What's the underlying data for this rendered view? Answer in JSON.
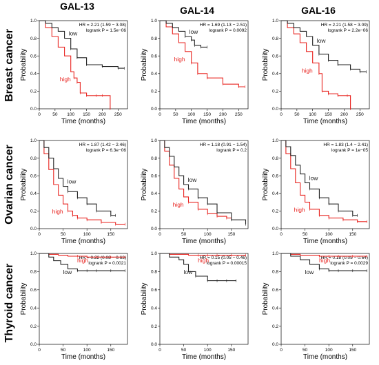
{
  "columns": [
    "GAL-13",
    "GAL-14",
    "GAL-16"
  ],
  "rows": [
    "Breast cancer",
    "Ovarian cancer",
    "Thyroid cancer"
  ],
  "colors": {
    "high": "#e8231f",
    "low": "#222222"
  },
  "chart_data": [
    {
      "type": "line",
      "row": 0,
      "col": 0,
      "xlabel": "Time (months)",
      "ylabel": "Probability",
      "xlim": [
        0,
        280
      ],
      "ylim": [
        0,
        1.0
      ],
      "xticks": [
        0,
        50,
        100,
        150,
        200,
        250
      ],
      "yticks": [
        0.0,
        0.2,
        0.4,
        0.6,
        0.8,
        1.0
      ],
      "hr_text": "HR = 2.21 (1.59 − 3.08)",
      "logrank_text": "logrank P = 1.5e−06",
      "series": [
        {
          "name": "high",
          "x": [
            0,
            20,
            40,
            60,
            80,
            100,
            110,
            120,
            130,
            150,
            180,
            200,
            225
          ],
          "y": [
            1.0,
            0.92,
            0.82,
            0.7,
            0.6,
            0.42,
            0.35,
            0.3,
            0.18,
            0.15,
            0.15,
            0.15,
            0.0
          ]
        },
        {
          "name": "low",
          "x": [
            0,
            20,
            40,
            60,
            80,
            100,
            120,
            150,
            200,
            250,
            270
          ],
          "y": [
            1.0,
            0.97,
            0.92,
            0.88,
            0.8,
            0.68,
            0.58,
            0.5,
            0.48,
            0.46,
            0.46
          ]
        }
      ]
    },
    {
      "type": "line",
      "row": 0,
      "col": 1,
      "xlabel": "Time (months)",
      "ylabel": "Probability",
      "xlim": [
        0,
        280
      ],
      "ylim": [
        0,
        1.0
      ],
      "xticks": [
        0,
        50,
        100,
        150,
        200,
        250
      ],
      "yticks": [
        0.0,
        0.2,
        0.4,
        0.6,
        0.8,
        1.0
      ],
      "hr_text": "HR = 1.69 (1.13 − 2.51)",
      "logrank_text": "logrank P = 0.0092",
      "series": [
        {
          "name": "high",
          "x": [
            0,
            20,
            40,
            60,
            80,
            100,
            120,
            150,
            200,
            250,
            270
          ],
          "y": [
            1.0,
            0.93,
            0.85,
            0.75,
            0.65,
            0.52,
            0.4,
            0.35,
            0.28,
            0.25,
            0.25
          ]
        },
        {
          "name": "low",
          "x": [
            0,
            20,
            40,
            60,
            80,
            100,
            110,
            130,
            150
          ],
          "y": [
            1.0,
            0.97,
            0.92,
            0.88,
            0.82,
            0.78,
            0.72,
            0.7,
            0.7
          ]
        }
      ]
    },
    {
      "type": "line",
      "row": 0,
      "col": 2,
      "xlabel": "Time (months)",
      "ylabel": "Probability",
      "xlim": [
        0,
        280
      ],
      "ylim": [
        0,
        1.0
      ],
      "xticks": [
        0,
        50,
        100,
        150,
        200,
        250
      ],
      "yticks": [
        0.0,
        0.2,
        0.4,
        0.6,
        0.8,
        1.0
      ],
      "hr_text": "HR = 2.21 (1.58 − 3.09)",
      "logrank_text": "logrank P = 2.2e−06",
      "series": [
        {
          "name": "high",
          "x": [
            0,
            20,
            40,
            60,
            80,
            100,
            120,
            130,
            150,
            180,
            210,
            220
          ],
          "y": [
            1.0,
            0.92,
            0.85,
            0.75,
            0.65,
            0.52,
            0.4,
            0.2,
            0.17,
            0.15,
            0.15,
            0.0
          ]
        },
        {
          "name": "low",
          "x": [
            0,
            20,
            40,
            60,
            80,
            100,
            120,
            150,
            180,
            220,
            250,
            270
          ],
          "y": [
            1.0,
            0.97,
            0.92,
            0.88,
            0.82,
            0.72,
            0.62,
            0.55,
            0.5,
            0.45,
            0.42,
            0.42
          ]
        }
      ]
    },
    {
      "type": "line",
      "row": 1,
      "col": 0,
      "xlabel": "Time (months)",
      "ylabel": "Probability",
      "xlim": [
        0,
        185
      ],
      "ylim": [
        0,
        1.0
      ],
      "xticks": [
        0,
        50,
        100,
        150
      ],
      "yticks": [
        0.0,
        0.2,
        0.4,
        0.6,
        0.8,
        1.0
      ],
      "hr_text": "HR = 1.87 (1.42 − 2.46)",
      "logrank_text": "logrank P = 6.3e−06",
      "series": [
        {
          "name": "high",
          "x": [
            0,
            10,
            20,
            30,
            40,
            50,
            60,
            70,
            80,
            100,
            130,
            160,
            180
          ],
          "y": [
            1.0,
            0.85,
            0.67,
            0.5,
            0.38,
            0.28,
            0.2,
            0.15,
            0.12,
            0.1,
            0.07,
            0.05,
            0.05
          ]
        },
        {
          "name": "low",
          "x": [
            0,
            10,
            20,
            30,
            40,
            50,
            60,
            80,
            100,
            120,
            150,
            160
          ],
          "y": [
            1.0,
            0.92,
            0.8,
            0.68,
            0.57,
            0.48,
            0.42,
            0.35,
            0.28,
            0.2,
            0.15,
            0.15
          ]
        }
      ]
    },
    {
      "type": "line",
      "row": 1,
      "col": 1,
      "xlabel": "Time (months)",
      "ylabel": "Probability",
      "xlim": [
        0,
        185
      ],
      "ylim": [
        0,
        1.0
      ],
      "xticks": [
        0,
        50,
        100,
        150
      ],
      "yticks": [
        0.0,
        0.2,
        0.4,
        0.6,
        0.8,
        1.0
      ],
      "hr_text": "HR = 1.18 (0.91 − 1.54)",
      "logrank_text": "logrank P = 0.2",
      "series": [
        {
          "name": "high",
          "x": [
            0,
            10,
            20,
            30,
            40,
            50,
            60,
            80,
            100,
            120,
            140,
            150
          ],
          "y": [
            1.0,
            0.88,
            0.72,
            0.57,
            0.45,
            0.36,
            0.3,
            0.22,
            0.17,
            0.14,
            0.12,
            0.12
          ]
        },
        {
          "name": "low",
          "x": [
            0,
            10,
            20,
            30,
            40,
            50,
            60,
            80,
            100,
            120,
            150,
            180
          ],
          "y": [
            1.0,
            0.92,
            0.82,
            0.7,
            0.6,
            0.5,
            0.45,
            0.35,
            0.28,
            0.18,
            0.1,
            0.05
          ]
        }
      ]
    },
    {
      "type": "line",
      "row": 1,
      "col": 2,
      "xlabel": "Time (months)",
      "ylabel": "Probability",
      "xlim": [
        0,
        185
      ],
      "ylim": [
        0,
        1.0
      ],
      "xticks": [
        0,
        50,
        100,
        150
      ],
      "yticks": [
        0.0,
        0.2,
        0.4,
        0.6,
        0.8,
        1.0
      ],
      "hr_text": "HR = 1.83 (1.4 − 2.41)",
      "logrank_text": "logrank P = 1e−05",
      "series": [
        {
          "name": "high",
          "x": [
            0,
            10,
            20,
            30,
            40,
            50,
            60,
            80,
            100,
            130,
            160,
            180
          ],
          "y": [
            1.0,
            0.85,
            0.68,
            0.52,
            0.38,
            0.3,
            0.22,
            0.15,
            0.12,
            0.1,
            0.08,
            0.08
          ]
        },
        {
          "name": "low",
          "x": [
            0,
            10,
            20,
            30,
            40,
            50,
            60,
            80,
            100,
            120,
            150,
            160
          ],
          "y": [
            1.0,
            0.93,
            0.83,
            0.72,
            0.62,
            0.52,
            0.45,
            0.35,
            0.28,
            0.2,
            0.15,
            0.15
          ]
        }
      ]
    },
    {
      "type": "line",
      "row": 2,
      "col": 0,
      "xlabel": "Time (months)",
      "ylabel": "Probability",
      "xlim": [
        0,
        185
      ],
      "ylim": [
        0,
        1.0
      ],
      "xticks": [
        0,
        50,
        100,
        150
      ],
      "yticks": [
        0.0,
        0.2,
        0.4,
        0.6,
        0.8,
        1.0
      ],
      "hr_text": "HR = 0.22 (0.08 − 0.63)",
      "logrank_text": "logrank P = 0.0021",
      "series": [
        {
          "name": "high",
          "x": [
            0,
            20,
            40,
            60,
            80,
            100,
            120,
            150,
            180
          ],
          "y": [
            1.0,
            0.99,
            0.98,
            0.97,
            0.97,
            0.96,
            0.96,
            0.96,
            0.96
          ]
        },
        {
          "name": "low",
          "x": [
            0,
            20,
            30,
            45,
            60,
            80,
            100,
            120,
            150,
            180
          ],
          "y": [
            1.0,
            0.96,
            0.92,
            0.88,
            0.83,
            0.81,
            0.81,
            0.81,
            0.81,
            0.81
          ]
        }
      ]
    },
    {
      "type": "line",
      "row": 2,
      "col": 1,
      "xlabel": "Time (months)",
      "ylabel": "Probability",
      "xlim": [
        0,
        185
      ],
      "ylim": [
        0,
        1.0
      ],
      "xticks": [
        0,
        50,
        100,
        150
      ],
      "yticks": [
        0.0,
        0.2,
        0.4,
        0.6,
        0.8,
        1.0
      ],
      "hr_text": "HR = 0.15 (0.05 − 0.46)",
      "logrank_text": "logrank P = 0.00015",
      "series": [
        {
          "name": "high",
          "x": [
            0,
            20,
            40,
            60,
            80,
            100,
            120,
            150,
            180
          ],
          "y": [
            1.0,
            0.99,
            0.99,
            0.98,
            0.98,
            0.98,
            0.98,
            0.98,
            0.98
          ]
        },
        {
          "name": "low",
          "x": [
            0,
            20,
            40,
            50,
            60,
            75,
            100,
            120,
            140,
            160
          ],
          "y": [
            1.0,
            0.96,
            0.93,
            0.88,
            0.8,
            0.75,
            0.7,
            0.7,
            0.7,
            0.7
          ]
        }
      ]
    },
    {
      "type": "line",
      "row": 2,
      "col": 2,
      "xlabel": "Time (months)",
      "ylabel": "Probability",
      "xlim": [
        0,
        185
      ],
      "ylim": [
        0,
        1.0
      ],
      "xticks": [
        0,
        50,
        100,
        150
      ],
      "yticks": [
        0.0,
        0.2,
        0.4,
        0.6,
        0.8,
        1.0
      ],
      "hr_text": "HR = 0.18 (0.05 − 0.64)",
      "logrank_text": "logrank P = 0.0029",
      "series": [
        {
          "name": "high",
          "x": [
            0,
            20,
            40,
            60,
            80,
            100,
            120,
            150,
            180
          ],
          "y": [
            1.0,
            0.99,
            0.98,
            0.98,
            0.97,
            0.97,
            0.97,
            0.97,
            0.97
          ]
        },
        {
          "name": "low",
          "x": [
            0,
            20,
            40,
            60,
            80,
            100,
            120,
            150,
            180
          ],
          "y": [
            1.0,
            0.97,
            0.93,
            0.88,
            0.83,
            0.81,
            0.81,
            0.81,
            0.81
          ]
        }
      ]
    }
  ]
}
